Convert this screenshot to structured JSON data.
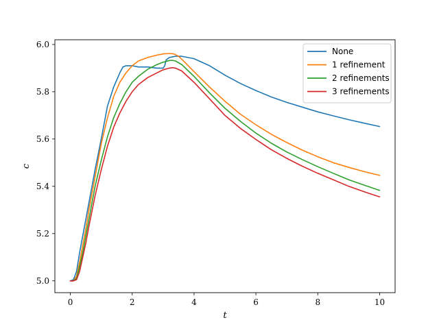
{
  "chart_data": {
    "type": "line",
    "title": "",
    "xlabel": "t",
    "ylabel": "c",
    "xlim": [
      -0.5,
      10.5
    ],
    "ylim": [
      4.95,
      6.02
    ],
    "xticks": [
      0,
      2,
      4,
      6,
      8,
      10
    ],
    "xtick_labels": [
      "0",
      "2",
      "4",
      "6",
      "8",
      "10"
    ],
    "yticks": [
      5.0,
      5.2,
      5.4,
      5.6,
      5.8,
      6.0
    ],
    "ytick_labels": [
      "5.0",
      "5.2",
      "5.4",
      "5.6",
      "5.8",
      "6.0"
    ],
    "grid": false,
    "legend_position": "top-right",
    "series": [
      {
        "name": "None",
        "color": "#1f77b4",
        "x": [
          0,
          0.1,
          0.2,
          0.3,
          0.4,
          0.5,
          0.6,
          0.8,
          1.0,
          1.2,
          1.4,
          1.6,
          1.7,
          1.8,
          2.0,
          2.2,
          2.5,
          2.8,
          3.0,
          3.05,
          3.1,
          3.2,
          3.4,
          3.6,
          3.8,
          4.0,
          4.5,
          5.0,
          5.5,
          6.0,
          6.5,
          7.0,
          7.5,
          8.0,
          8.5,
          9.0,
          9.5,
          10.0
        ],
        "y": [
          5.0,
          5.005,
          5.04,
          5.12,
          5.19,
          5.26,
          5.33,
          5.47,
          5.6,
          5.74,
          5.82,
          5.88,
          5.905,
          5.91,
          5.91,
          5.905,
          5.905,
          5.9,
          5.9,
          5.91,
          5.935,
          5.945,
          5.95,
          5.95,
          5.945,
          5.94,
          5.91,
          5.87,
          5.835,
          5.805,
          5.778,
          5.755,
          5.735,
          5.715,
          5.698,
          5.682,
          5.667,
          5.653
        ]
      },
      {
        "name": "1 refinement",
        "color": "#ff7f0e",
        "x": [
          0,
          0.1,
          0.2,
          0.3,
          0.4,
          0.5,
          0.6,
          0.8,
          1.0,
          1.2,
          1.4,
          1.6,
          1.8,
          2.0,
          2.2,
          2.5,
          2.8,
          3.0,
          3.2,
          3.35,
          3.5,
          3.7,
          4.0,
          4.5,
          5.0,
          5.5,
          6.0,
          6.5,
          7.0,
          7.5,
          8.0,
          8.5,
          9.0,
          9.5,
          10.0
        ],
        "y": [
          5.0,
          5.0,
          5.02,
          5.08,
          5.15,
          5.22,
          5.3,
          5.44,
          5.58,
          5.69,
          5.78,
          5.84,
          5.88,
          5.91,
          5.93,
          5.945,
          5.955,
          5.96,
          5.962,
          5.96,
          5.95,
          5.925,
          5.885,
          5.82,
          5.76,
          5.705,
          5.66,
          5.62,
          5.585,
          5.553,
          5.525,
          5.5,
          5.48,
          5.462,
          5.446
        ]
      },
      {
        "name": "2 refinements",
        "color": "#2ca02c",
        "x": [
          0,
          0.1,
          0.2,
          0.3,
          0.4,
          0.5,
          0.6,
          0.8,
          1.0,
          1.2,
          1.4,
          1.6,
          1.8,
          2.0,
          2.2,
          2.5,
          2.8,
          3.0,
          3.2,
          3.3,
          3.4,
          3.6,
          4.0,
          4.5,
          5.0,
          5.5,
          6.0,
          6.5,
          7.0,
          7.5,
          8.0,
          8.5,
          9.0,
          9.5,
          10.0
        ],
        "y": [
          5.0,
          5.0,
          5.01,
          5.06,
          5.12,
          5.19,
          5.26,
          5.4,
          5.51,
          5.61,
          5.69,
          5.75,
          5.8,
          5.84,
          5.865,
          5.895,
          5.915,
          5.925,
          5.932,
          5.933,
          5.93,
          5.915,
          5.865,
          5.795,
          5.73,
          5.675,
          5.625,
          5.582,
          5.545,
          5.513,
          5.483,
          5.455,
          5.428,
          5.405,
          5.383
        ]
      },
      {
        "name": "3 refinements",
        "color": "#d62728",
        "x": [
          0,
          0.1,
          0.2,
          0.3,
          0.4,
          0.5,
          0.6,
          0.8,
          1.0,
          1.2,
          1.4,
          1.6,
          1.8,
          2.0,
          2.2,
          2.5,
          2.8,
          3.0,
          3.2,
          3.3,
          3.4,
          3.6,
          4.0,
          4.5,
          5.0,
          5.5,
          6.0,
          6.5,
          7.0,
          7.5,
          8.0,
          8.5,
          9.0,
          9.5,
          10.0
        ],
        "y": [
          5.0,
          5.0,
          5.005,
          5.04,
          5.1,
          5.16,
          5.23,
          5.36,
          5.47,
          5.57,
          5.65,
          5.71,
          5.76,
          5.8,
          5.83,
          5.86,
          5.88,
          5.893,
          5.9,
          5.902,
          5.9,
          5.888,
          5.84,
          5.77,
          5.7,
          5.645,
          5.598,
          5.555,
          5.518,
          5.485,
          5.455,
          5.428,
          5.4,
          5.377,
          5.355
        ]
      }
    ]
  }
}
